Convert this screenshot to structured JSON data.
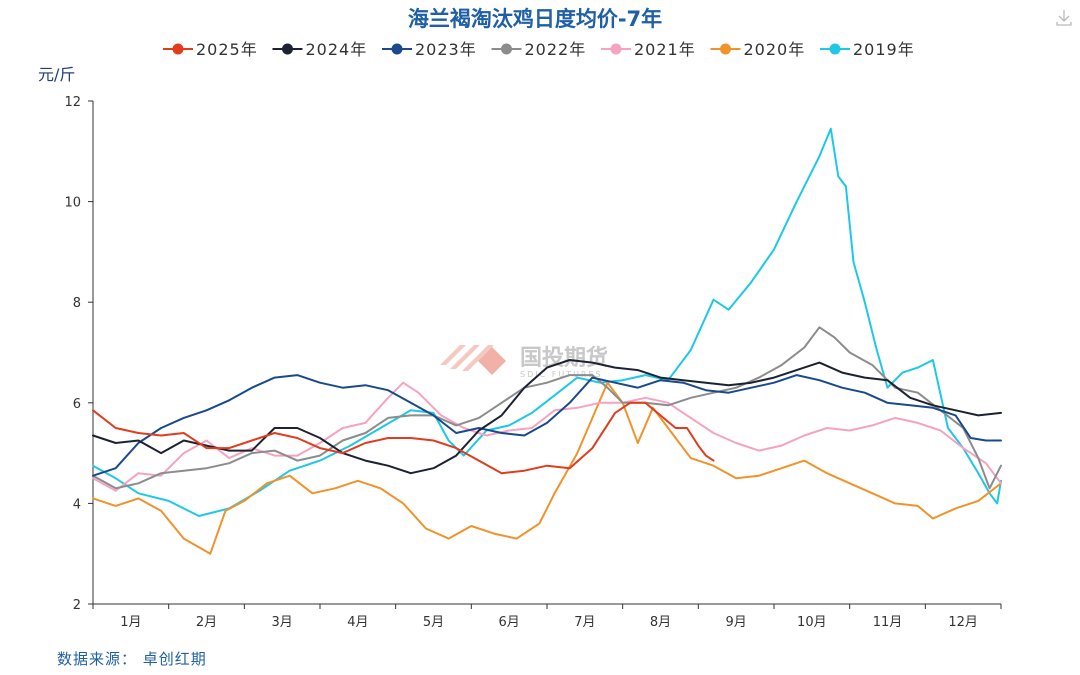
{
  "chart_data": {
    "type": "line",
    "title": "海兰褐淘汰鸡日度均价-7年",
    "unit": "元/斤",
    "ylim": [
      2,
      12
    ],
    "yticks": [
      "2",
      "4",
      "6",
      "8",
      "10",
      "12"
    ],
    "months": [
      "1月",
      "2月",
      "3月",
      "4月",
      "5月",
      "6月",
      "7月",
      "8月",
      "9月",
      "10月",
      "11月",
      "12月"
    ],
    "xlim": [
      0,
      12
    ],
    "legend_position": "top",
    "source": "数据来源：  卓创红期",
    "watermark": "国投期货",
    "watermark_sub": "SDIC FUTURES",
    "series": [
      {
        "name": "2019年",
        "color": "#1ec8e6",
        "points": [
          [
            0,
            4.75
          ],
          [
            0.3,
            4.5
          ],
          [
            0.6,
            4.2
          ],
          [
            1.0,
            4.05
          ],
          [
            1.4,
            3.75
          ],
          [
            1.8,
            3.9
          ],
          [
            2.2,
            4.25
          ],
          [
            2.6,
            4.65
          ],
          [
            3.0,
            4.85
          ],
          [
            3.4,
            5.15
          ],
          [
            3.8,
            5.5
          ],
          [
            4.2,
            5.85
          ],
          [
            4.5,
            5.8
          ],
          [
            4.7,
            5.25
          ],
          [
            4.9,
            4.95
          ],
          [
            5.2,
            5.45
          ],
          [
            5.5,
            5.55
          ],
          [
            5.8,
            5.8
          ],
          [
            6.1,
            6.15
          ],
          [
            6.4,
            6.5
          ],
          [
            6.7,
            6.4
          ],
          [
            7.0,
            6.45
          ],
          [
            7.3,
            6.55
          ],
          [
            7.6,
            6.45
          ],
          [
            7.9,
            7.05
          ],
          [
            8.2,
            8.05
          ],
          [
            8.4,
            7.85
          ],
          [
            8.7,
            8.4
          ],
          [
            9.0,
            9.05
          ],
          [
            9.3,
            10.0
          ],
          [
            9.6,
            10.9
          ],
          [
            9.75,
            11.45
          ],
          [
            9.85,
            10.5
          ],
          [
            9.95,
            10.3
          ],
          [
            10.05,
            8.8
          ],
          [
            10.2,
            8.0
          ],
          [
            10.35,
            7.1
          ],
          [
            10.5,
            6.3
          ],
          [
            10.7,
            6.6
          ],
          [
            10.9,
            6.7
          ],
          [
            11.1,
            6.85
          ],
          [
            11.3,
            5.5
          ],
          [
            11.5,
            5.1
          ],
          [
            11.7,
            4.6
          ],
          [
            11.85,
            4.2
          ],
          [
            11.95,
            4.0
          ],
          [
            12.0,
            4.45
          ]
        ]
      },
      {
        "name": "2020年",
        "color": "#f0932b",
        "points": [
          [
            0,
            4.1
          ],
          [
            0.3,
            3.95
          ],
          [
            0.6,
            4.1
          ],
          [
            0.9,
            3.85
          ],
          [
            1.2,
            3.3
          ],
          [
            1.55,
            3.0
          ],
          [
            1.75,
            3.85
          ],
          [
            2.0,
            4.05
          ],
          [
            2.3,
            4.4
          ],
          [
            2.6,
            4.55
          ],
          [
            2.9,
            4.2
          ],
          [
            3.2,
            4.3
          ],
          [
            3.5,
            4.45
          ],
          [
            3.8,
            4.3
          ],
          [
            4.1,
            4.0
          ],
          [
            4.4,
            3.5
          ],
          [
            4.7,
            3.3
          ],
          [
            5.0,
            3.55
          ],
          [
            5.3,
            3.4
          ],
          [
            5.6,
            3.3
          ],
          [
            5.9,
            3.6
          ],
          [
            6.1,
            4.2
          ],
          [
            6.4,
            5.0
          ],
          [
            6.6,
            5.7
          ],
          [
            6.8,
            6.4
          ],
          [
            7.0,
            6.0
          ],
          [
            7.2,
            5.2
          ],
          [
            7.4,
            5.9
          ],
          [
            7.6,
            5.5
          ],
          [
            7.9,
            4.9
          ],
          [
            8.2,
            4.75
          ],
          [
            8.5,
            4.5
          ],
          [
            8.8,
            4.55
          ],
          [
            9.1,
            4.7
          ],
          [
            9.4,
            4.85
          ],
          [
            9.7,
            4.6
          ],
          [
            10.0,
            4.4
          ],
          [
            10.3,
            4.2
          ],
          [
            10.6,
            4.0
          ],
          [
            10.9,
            3.95
          ],
          [
            11.1,
            3.7
          ],
          [
            11.4,
            3.9
          ],
          [
            11.7,
            4.05
          ],
          [
            12.0,
            4.4
          ]
        ]
      },
      {
        "name": "2021年",
        "color": "#f4a3c0",
        "points": [
          [
            0,
            4.5
          ],
          [
            0.3,
            4.25
          ],
          [
            0.6,
            4.6
          ],
          [
            0.9,
            4.55
          ],
          [
            1.2,
            5.0
          ],
          [
            1.5,
            5.25
          ],
          [
            1.8,
            4.9
          ],
          [
            2.1,
            5.1
          ],
          [
            2.4,
            4.95
          ],
          [
            2.7,
            4.95
          ],
          [
            3.0,
            5.2
          ],
          [
            3.3,
            5.5
          ],
          [
            3.6,
            5.6
          ],
          [
            3.9,
            6.1
          ],
          [
            4.1,
            6.4
          ],
          [
            4.3,
            6.2
          ],
          [
            4.6,
            5.75
          ],
          [
            4.9,
            5.5
          ],
          [
            5.2,
            5.35
          ],
          [
            5.5,
            5.45
          ],
          [
            5.8,
            5.5
          ],
          [
            6.1,
            5.85
          ],
          [
            6.4,
            5.9
          ],
          [
            6.7,
            6.0
          ],
          [
            7.0,
            6.0
          ],
          [
            7.3,
            6.1
          ],
          [
            7.6,
            6.0
          ],
          [
            7.9,
            5.7
          ],
          [
            8.2,
            5.4
          ],
          [
            8.5,
            5.2
          ],
          [
            8.8,
            5.05
          ],
          [
            9.1,
            5.15
          ],
          [
            9.4,
            5.35
          ],
          [
            9.7,
            5.5
          ],
          [
            10.0,
            5.45
          ],
          [
            10.3,
            5.55
          ],
          [
            10.6,
            5.7
          ],
          [
            10.9,
            5.6
          ],
          [
            11.2,
            5.45
          ],
          [
            11.5,
            5.1
          ],
          [
            11.8,
            4.8
          ],
          [
            12.0,
            4.4
          ]
        ]
      },
      {
        "name": "2022年",
        "color": "#8c8c8c",
        "points": [
          [
            0,
            4.55
          ],
          [
            0.3,
            4.3
          ],
          [
            0.6,
            4.4
          ],
          [
            0.9,
            4.6
          ],
          [
            1.2,
            4.65
          ],
          [
            1.5,
            4.7
          ],
          [
            1.8,
            4.8
          ],
          [
            2.1,
            5.0
          ],
          [
            2.4,
            5.05
          ],
          [
            2.7,
            4.85
          ],
          [
            3.0,
            4.95
          ],
          [
            3.3,
            5.25
          ],
          [
            3.6,
            5.4
          ],
          [
            3.9,
            5.7
          ],
          [
            4.2,
            5.75
          ],
          [
            4.5,
            5.75
          ],
          [
            4.8,
            5.55
          ],
          [
            5.1,
            5.7
          ],
          [
            5.4,
            6.0
          ],
          [
            5.7,
            6.3
          ],
          [
            6.0,
            6.4
          ],
          [
            6.3,
            6.55
          ],
          [
            6.6,
            6.55
          ],
          [
            6.8,
            6.3
          ],
          [
            7.0,
            6.0
          ],
          [
            7.3,
            6.0
          ],
          [
            7.6,
            5.95
          ],
          [
            7.9,
            6.1
          ],
          [
            8.2,
            6.2
          ],
          [
            8.5,
            6.3
          ],
          [
            8.8,
            6.5
          ],
          [
            9.1,
            6.75
          ],
          [
            9.4,
            7.1
          ],
          [
            9.6,
            7.5
          ],
          [
            9.8,
            7.3
          ],
          [
            10.0,
            7.0
          ],
          [
            10.3,
            6.75
          ],
          [
            10.6,
            6.3
          ],
          [
            10.9,
            6.2
          ],
          [
            11.2,
            5.85
          ],
          [
            11.5,
            5.5
          ],
          [
            11.7,
            4.9
          ],
          [
            11.85,
            4.3
          ],
          [
            12.0,
            4.75
          ]
        ]
      },
      {
        "name": "2023年",
        "color": "#1a4a8c",
        "points": [
          [
            0,
            4.55
          ],
          [
            0.3,
            4.7
          ],
          [
            0.6,
            5.2
          ],
          [
            0.9,
            5.5
          ],
          [
            1.2,
            5.7
          ],
          [
            1.5,
            5.85
          ],
          [
            1.8,
            6.05
          ],
          [
            2.1,
            6.3
          ],
          [
            2.4,
            6.5
          ],
          [
            2.7,
            6.55
          ],
          [
            3.0,
            6.4
          ],
          [
            3.3,
            6.3
          ],
          [
            3.6,
            6.35
          ],
          [
            3.9,
            6.25
          ],
          [
            4.2,
            6.0
          ],
          [
            4.5,
            5.75
          ],
          [
            4.8,
            5.4
          ],
          [
            5.1,
            5.5
          ],
          [
            5.4,
            5.4
          ],
          [
            5.7,
            5.35
          ],
          [
            6.0,
            5.6
          ],
          [
            6.3,
            6.0
          ],
          [
            6.6,
            6.5
          ],
          [
            6.9,
            6.4
          ],
          [
            7.2,
            6.3
          ],
          [
            7.5,
            6.45
          ],
          [
            7.8,
            6.4
          ],
          [
            8.1,
            6.25
          ],
          [
            8.4,
            6.2
          ],
          [
            8.7,
            6.3
          ],
          [
            9.0,
            6.4
          ],
          [
            9.3,
            6.55
          ],
          [
            9.6,
            6.45
          ],
          [
            9.9,
            6.3
          ],
          [
            10.2,
            6.2
          ],
          [
            10.5,
            6.0
          ],
          [
            10.8,
            5.95
          ],
          [
            11.1,
            5.9
          ],
          [
            11.4,
            5.75
          ],
          [
            11.6,
            5.3
          ],
          [
            11.8,
            5.25
          ],
          [
            12.0,
            5.25
          ]
        ]
      },
      {
        "name": "2024年",
        "color": "#1c2233",
        "points": [
          [
            0,
            5.35
          ],
          [
            0.3,
            5.2
          ],
          [
            0.6,
            5.25
          ],
          [
            0.9,
            5.0
          ],
          [
            1.2,
            5.25
          ],
          [
            1.5,
            5.15
          ],
          [
            1.8,
            5.05
          ],
          [
            2.1,
            5.05
          ],
          [
            2.4,
            5.5
          ],
          [
            2.7,
            5.5
          ],
          [
            3.0,
            5.3
          ],
          [
            3.3,
            5.0
          ],
          [
            3.6,
            4.85
          ],
          [
            3.9,
            4.75
          ],
          [
            4.2,
            4.6
          ],
          [
            4.5,
            4.7
          ],
          [
            4.8,
            4.95
          ],
          [
            5.1,
            5.45
          ],
          [
            5.4,
            5.75
          ],
          [
            5.7,
            6.3
          ],
          [
            6.0,
            6.7
          ],
          [
            6.3,
            6.85
          ],
          [
            6.6,
            6.8
          ],
          [
            6.9,
            6.7
          ],
          [
            7.2,
            6.65
          ],
          [
            7.5,
            6.5
          ],
          [
            7.8,
            6.45
          ],
          [
            8.1,
            6.4
          ],
          [
            8.4,
            6.35
          ],
          [
            8.7,
            6.4
          ],
          [
            9.0,
            6.5
          ],
          [
            9.3,
            6.65
          ],
          [
            9.6,
            6.8
          ],
          [
            9.9,
            6.6
          ],
          [
            10.2,
            6.5
          ],
          [
            10.5,
            6.45
          ],
          [
            10.8,
            6.1
          ],
          [
            11.1,
            5.95
          ],
          [
            11.4,
            5.85
          ],
          [
            11.7,
            5.75
          ],
          [
            12.0,
            5.8
          ]
        ]
      },
      {
        "name": "2025年",
        "color": "#e03c1e",
        "points": [
          [
            0,
            5.85
          ],
          [
            0.3,
            5.5
          ],
          [
            0.6,
            5.4
          ],
          [
            0.9,
            5.35
          ],
          [
            1.2,
            5.4
          ],
          [
            1.5,
            5.1
          ],
          [
            1.8,
            5.1
          ],
          [
            2.1,
            5.25
          ],
          [
            2.4,
            5.4
          ],
          [
            2.7,
            5.3
          ],
          [
            3.0,
            5.1
          ],
          [
            3.3,
            5.0
          ],
          [
            3.6,
            5.2
          ],
          [
            3.9,
            5.3
          ],
          [
            4.2,
            5.3
          ],
          [
            4.5,
            5.25
          ],
          [
            4.8,
            5.1
          ],
          [
            5.1,
            4.85
          ],
          [
            5.4,
            4.6
          ],
          [
            5.7,
            4.65
          ],
          [
            6.0,
            4.75
          ],
          [
            6.3,
            4.7
          ],
          [
            6.6,
            5.1
          ],
          [
            6.9,
            5.8
          ],
          [
            7.1,
            6.0
          ],
          [
            7.3,
            6.0
          ],
          [
            7.5,
            5.75
          ],
          [
            7.7,
            5.5
          ],
          [
            7.85,
            5.5
          ],
          [
            8.0,
            5.15
          ],
          [
            8.1,
            4.95
          ],
          [
            8.2,
            4.85
          ]
        ]
      }
    ]
  }
}
